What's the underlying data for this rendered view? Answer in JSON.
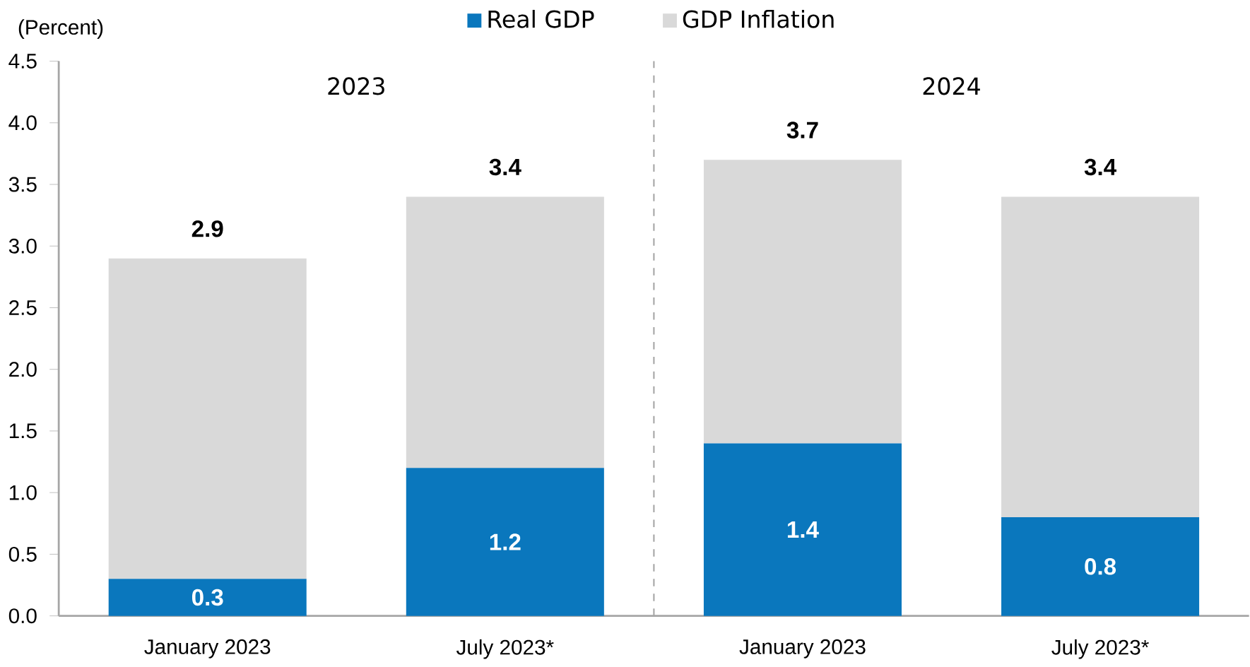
{
  "chart_data": {
    "type": "bar",
    "stacked": true,
    "ylabel": "(Percent)",
    "categories": [
      "January 2023",
      "July 2023*",
      "January 2023",
      "July 2023*"
    ],
    "series": [
      {
        "name": "Real GDP",
        "color": "#0a77bd",
        "values": [
          0.3,
          1.2,
          1.4,
          0.8
        ],
        "value_labels": [
          "0.3",
          "1.2",
          "1.4",
          "0.8"
        ]
      },
      {
        "name": "GDP Inflation",
        "color": "#d9d9d9",
        "values": [
          2.6,
          2.2,
          2.3,
          2.6
        ]
      }
    ],
    "totals": [
      "2.9",
      "3.4",
      "3.7",
      "3.4"
    ],
    "annotations": [
      "2023",
      "2024"
    ],
    "ylim": [
      0,
      4.5
    ],
    "yticks": [
      {
        "value": 0,
        "label": "0.0"
      },
      0.5,
      {
        "value": 1,
        "label": "1.0"
      },
      1.5,
      {
        "value": 2,
        "label": "2.0"
      },
      2.5,
      {
        "value": 3,
        "label": "3.0"
      },
      3.5,
      {
        "value": 4,
        "label": "4.0"
      },
      4.5
    ],
    "legend": "top",
    "grid": false
  }
}
